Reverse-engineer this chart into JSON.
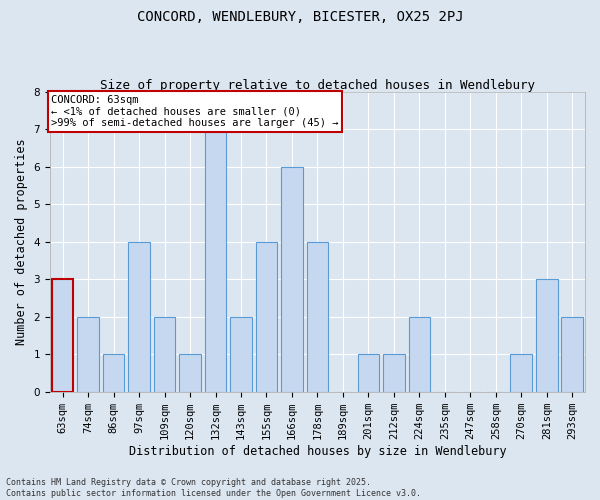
{
  "title_line1": "CONCORD, WENDLEBURY, BICESTER, OX25 2PJ",
  "title_line2": "Size of property relative to detached houses in Wendlebury",
  "xlabel": "Distribution of detached houses by size in Wendlebury",
  "ylabel": "Number of detached properties",
  "categories": [
    "63sqm",
    "74sqm",
    "86sqm",
    "97sqm",
    "109sqm",
    "120sqm",
    "132sqm",
    "143sqm",
    "155sqm",
    "166sqm",
    "178sqm",
    "189sqm",
    "201sqm",
    "212sqm",
    "224sqm",
    "235sqm",
    "247sqm",
    "258sqm",
    "270sqm",
    "281sqm",
    "293sqm"
  ],
  "values": [
    3,
    2,
    1,
    4,
    2,
    1,
    7,
    2,
    4,
    6,
    4,
    0,
    1,
    1,
    2,
    0,
    0,
    0,
    1,
    3,
    2
  ],
  "bar_color": "#c5d8f0",
  "bar_edge_color": "#5b9bd5",
  "highlight_index": 0,
  "highlight_bar_edge_color": "#c00000",
  "annotation_text": "CONCORD: 63sqm\n← <1% of detached houses are smaller (0)\n>99% of semi-detached houses are larger (45) →",
  "annotation_box_edge": "#c00000",
  "annotation_box_face": "#ffffff",
  "ylim": [
    0,
    8
  ],
  "yticks": [
    0,
    1,
    2,
    3,
    4,
    5,
    6,
    7,
    8
  ],
  "title_fontsize": 10,
  "subtitle_fontsize": 9,
  "xlabel_fontsize": 8.5,
  "ylabel_fontsize": 8.5,
  "tick_fontsize": 7.5,
  "annotation_fontsize": 7.5,
  "footer_line1": "Contains HM Land Registry data © Crown copyright and database right 2025.",
  "footer_line2": "Contains public sector information licensed under the Open Government Licence v3.0.",
  "footer_fontsize": 6,
  "background_color": "#dce6f1",
  "plot_bg_color": "#dce6f1",
  "grid_color": "#ffffff",
  "spine_color": "#aaaaaa"
}
